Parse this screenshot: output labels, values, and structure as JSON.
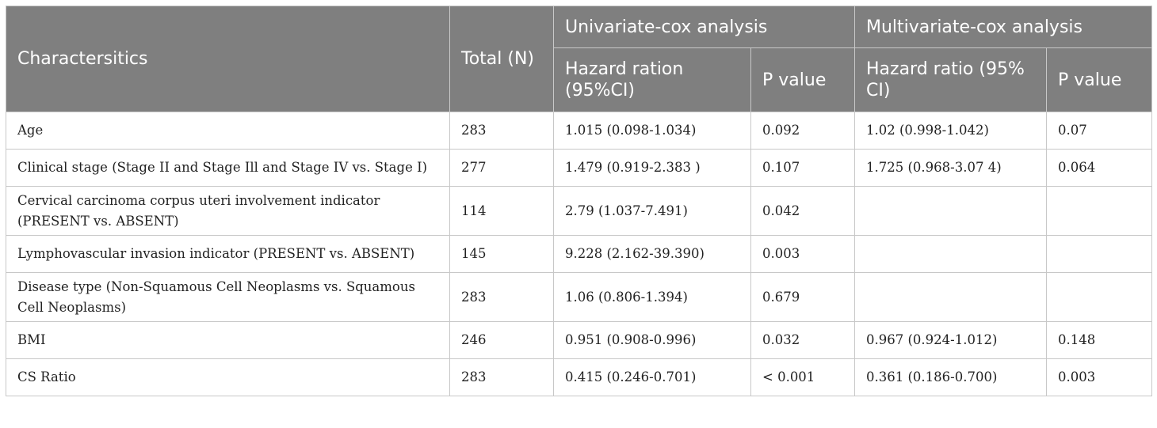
{
  "headers": {
    "characteristics": "Charactersitics",
    "total": "Total (N)",
    "univariate": "Univariate-cox analysis",
    "multivariate": "Multivariate-cox analysis",
    "uni_hr": "Hazard ration (95%CI)",
    "uni_p": "P value",
    "multi_hr": "Hazard ratio (95% CI)",
    "multi_p": "P value"
  },
  "rows": [
    {
      "name": "Age",
      "total": "283",
      "uni_hr": "1.015 (0.098-1.034)",
      "uni_p": "0.092",
      "multi_hr": "1.02 (0.998-1.042)",
      "multi_p": "0.07"
    },
    {
      "name": "Clinical stage (Stage II and Stage Ill and Stage IV vs. Stage I)",
      "total": "277",
      "uni_hr": "1.479 (0.919-2.383 )",
      "uni_p": "0.107",
      "multi_hr": "1.725 (0.968-3.07 4)",
      "multi_p": "0.064"
    },
    {
      "name": "Cervical carcinoma corpus uteri involvement indicator (PRESENT vs. ABSENT)",
      "total": "114",
      "uni_hr": "2.79 (1.037-7.491)",
      "uni_p": "0.042",
      "multi_hr": "",
      "multi_p": ""
    },
    {
      "name": "Lymphovascular invasion indicator (PRESENT vs. ABSENT)",
      "total": "145",
      "uni_hr": "9.228 (2.162-39.390)",
      "uni_p": "0.003",
      "multi_hr": "",
      "multi_p": ""
    },
    {
      "name": "Disease type (Non-Squamous Cell Neoplasms vs. Squamous Cell Neoplasms)",
      "total": "283",
      "uni_hr": "1.06 (0.806-1.394)",
      "uni_p": "0.679",
      "multi_hr": "",
      "multi_p": ""
    },
    {
      "name": "BMI",
      "total": "246",
      "uni_hr": "0.951 (0.908-0.996)",
      "uni_p": "0.032",
      "multi_hr": "0.967 (0.924-1.012)",
      "multi_p": "0.148"
    },
    {
      "name": "CS Ratio",
      "total": "283",
      "uni_hr": "0.415 (0.246-0.701)",
      "uni_p": "< 0.001",
      "multi_hr": "0.361 (0.186-0.700)",
      "multi_p": "0.003"
    }
  ]
}
